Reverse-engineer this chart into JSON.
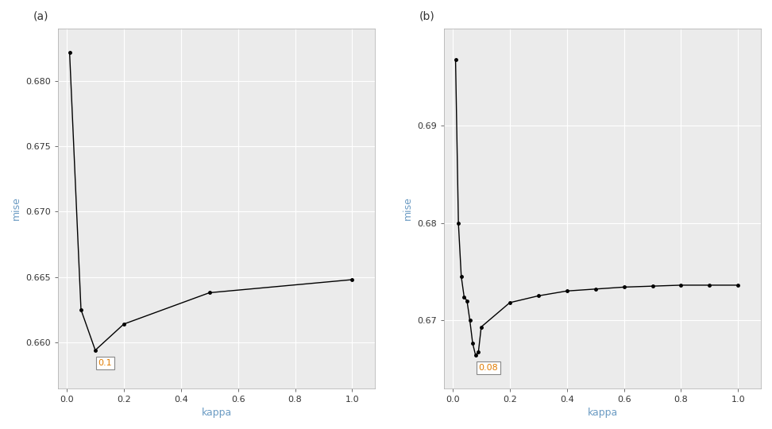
{
  "panel_a": {
    "kappa": [
      0.01,
      0.05,
      0.1,
      0.2,
      0.5,
      1.0
    ],
    "mise": [
      0.6822,
      0.6625,
      0.6594,
      0.6614,
      0.6638,
      0.6648
    ],
    "min_kappa": 0.1,
    "min_mise": 0.6594,
    "label": "(a)",
    "annotation": "0.1",
    "xlabel": "kappa",
    "ylabel": "mise",
    "ylim": [
      0.6565,
      0.684
    ],
    "yticks": [
      0.66,
      0.665,
      0.67,
      0.675,
      0.68
    ],
    "xticks": [
      0.0,
      0.2,
      0.4,
      0.6,
      0.8,
      1.0
    ],
    "xlim": [
      -0.03,
      1.08
    ]
  },
  "panel_b": {
    "kappa": [
      0.01,
      0.02,
      0.03,
      0.04,
      0.05,
      0.06,
      0.07,
      0.08,
      0.09,
      0.1,
      0.2,
      0.3,
      0.4,
      0.5,
      0.6,
      0.7,
      0.8,
      0.9,
      1.0
    ],
    "mise": [
      0.6968,
      0.68,
      0.6745,
      0.6724,
      0.672,
      0.67,
      0.6676,
      0.6664,
      0.6667,
      0.6693,
      0.6718,
      0.6725,
      0.673,
      0.6732,
      0.6734,
      0.6735,
      0.6736,
      0.6736,
      0.6736
    ],
    "min_kappa": 0.08,
    "min_mise": 0.6664,
    "label": "(b)",
    "annotation": "0.08",
    "xlabel": "kappa",
    "ylabel": "mise",
    "ylim": [
      0.663,
      0.7
    ],
    "yticks": [
      0.67,
      0.68,
      0.69
    ],
    "xticks": [
      0.0,
      0.2,
      0.4,
      0.6,
      0.8,
      1.0
    ],
    "xlim": [
      -0.03,
      1.08
    ]
  },
  "line_color": "#000000",
  "marker": ".",
  "markersize": 5,
  "linewidth": 1.0,
  "bg_color": "#ffffff",
  "plot_bg_color": "#ebebeb",
  "grid_color": "#ffffff",
  "tick_color": "#333333",
  "axis_label_color": "#6b9bc3",
  "annot_text_color": "#e07b00",
  "annot_fontsize": 8,
  "axis_fontsize": 9,
  "tick_fontsize": 8,
  "panel_label_fontsize": 10
}
